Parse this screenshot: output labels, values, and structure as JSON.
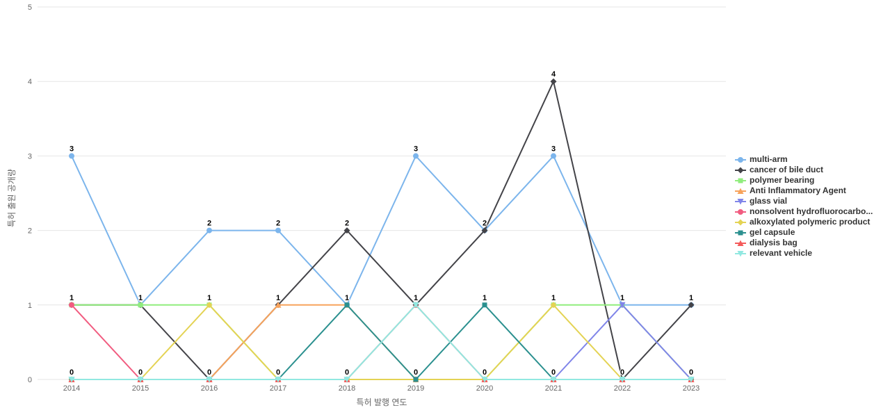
{
  "chart_data": {
    "type": "line",
    "title": "",
    "categories": [
      "2014",
      "2015",
      "2016",
      "2017",
      "2018",
      "2019",
      "2020",
      "2021",
      "2022",
      "2023"
    ],
    "series": [
      {
        "name": "multi-arm",
        "color": "#7cb5ec",
        "marker": "circle",
        "values": [
          3,
          1,
          2,
          2,
          1,
          3,
          2,
          3,
          1,
          1
        ]
      },
      {
        "name": "cancer of bile duct",
        "color": "#434348",
        "marker": "diamond",
        "values": [
          1,
          1,
          0,
          1,
          2,
          1,
          2,
          4,
          0,
          1
        ]
      },
      {
        "name": "polymer bearing",
        "color": "#90ed7d",
        "marker": "square",
        "values": [
          1,
          1,
          1,
          0,
          0,
          0,
          0,
          1,
          1,
          0
        ]
      },
      {
        "name": "Anti Inflammatory Agent",
        "color": "#f7a35c",
        "marker": "triangle",
        "values": [
          0,
          0,
          0,
          1,
          1,
          0,
          0,
          0,
          0,
          0
        ]
      },
      {
        "name": "glass vial",
        "color": "#8085e9",
        "marker": "triangle-down",
        "values": [
          0,
          0,
          0,
          0,
          0,
          0,
          0,
          0,
          1,
          0
        ]
      },
      {
        "name": "nonsolvent hydrofluorocarbo...",
        "color": "#f15c80",
        "marker": "circle",
        "values": [
          1,
          0,
          0,
          0,
          0,
          0,
          0,
          0,
          0,
          0
        ]
      },
      {
        "name": "alkoxylated polymeric product",
        "color": "#e4d354",
        "marker": "diamond",
        "values": [
          0,
          0,
          1,
          0,
          0,
          0,
          0,
          1,
          0,
          0
        ]
      },
      {
        "name": "gel capsule",
        "color": "#2b908f",
        "marker": "square",
        "values": [
          0,
          0,
          0,
          0,
          1,
          0,
          1,
          0,
          0,
          0
        ]
      },
      {
        "name": "dialysis bag",
        "color": "#f45b5b",
        "marker": "triangle",
        "values": [
          0,
          0,
          0,
          0,
          0,
          1,
          0,
          0,
          0,
          0
        ]
      },
      {
        "name": "relevant vehicle",
        "color": "#91e8e1",
        "marker": "triangle-down",
        "values": [
          0,
          0,
          0,
          0,
          0,
          1,
          0,
          0,
          0,
          0
        ]
      }
    ],
    "xlabel": "특허 발행 연도",
    "ylabel": "특허 출원 공개량",
    "ylim": [
      0,
      5
    ],
    "yticks": [
      0,
      1,
      2,
      3,
      4,
      5
    ],
    "grid": "horizontal",
    "legend_position": "right-middle",
    "data_labels": true,
    "colors": {
      "grid": "#e6e6e6",
      "tick_label": "#666666",
      "axis_title": "#666666",
      "legend_text": "#333333",
      "data_label": "#000000",
      "background": "#ffffff"
    }
  }
}
